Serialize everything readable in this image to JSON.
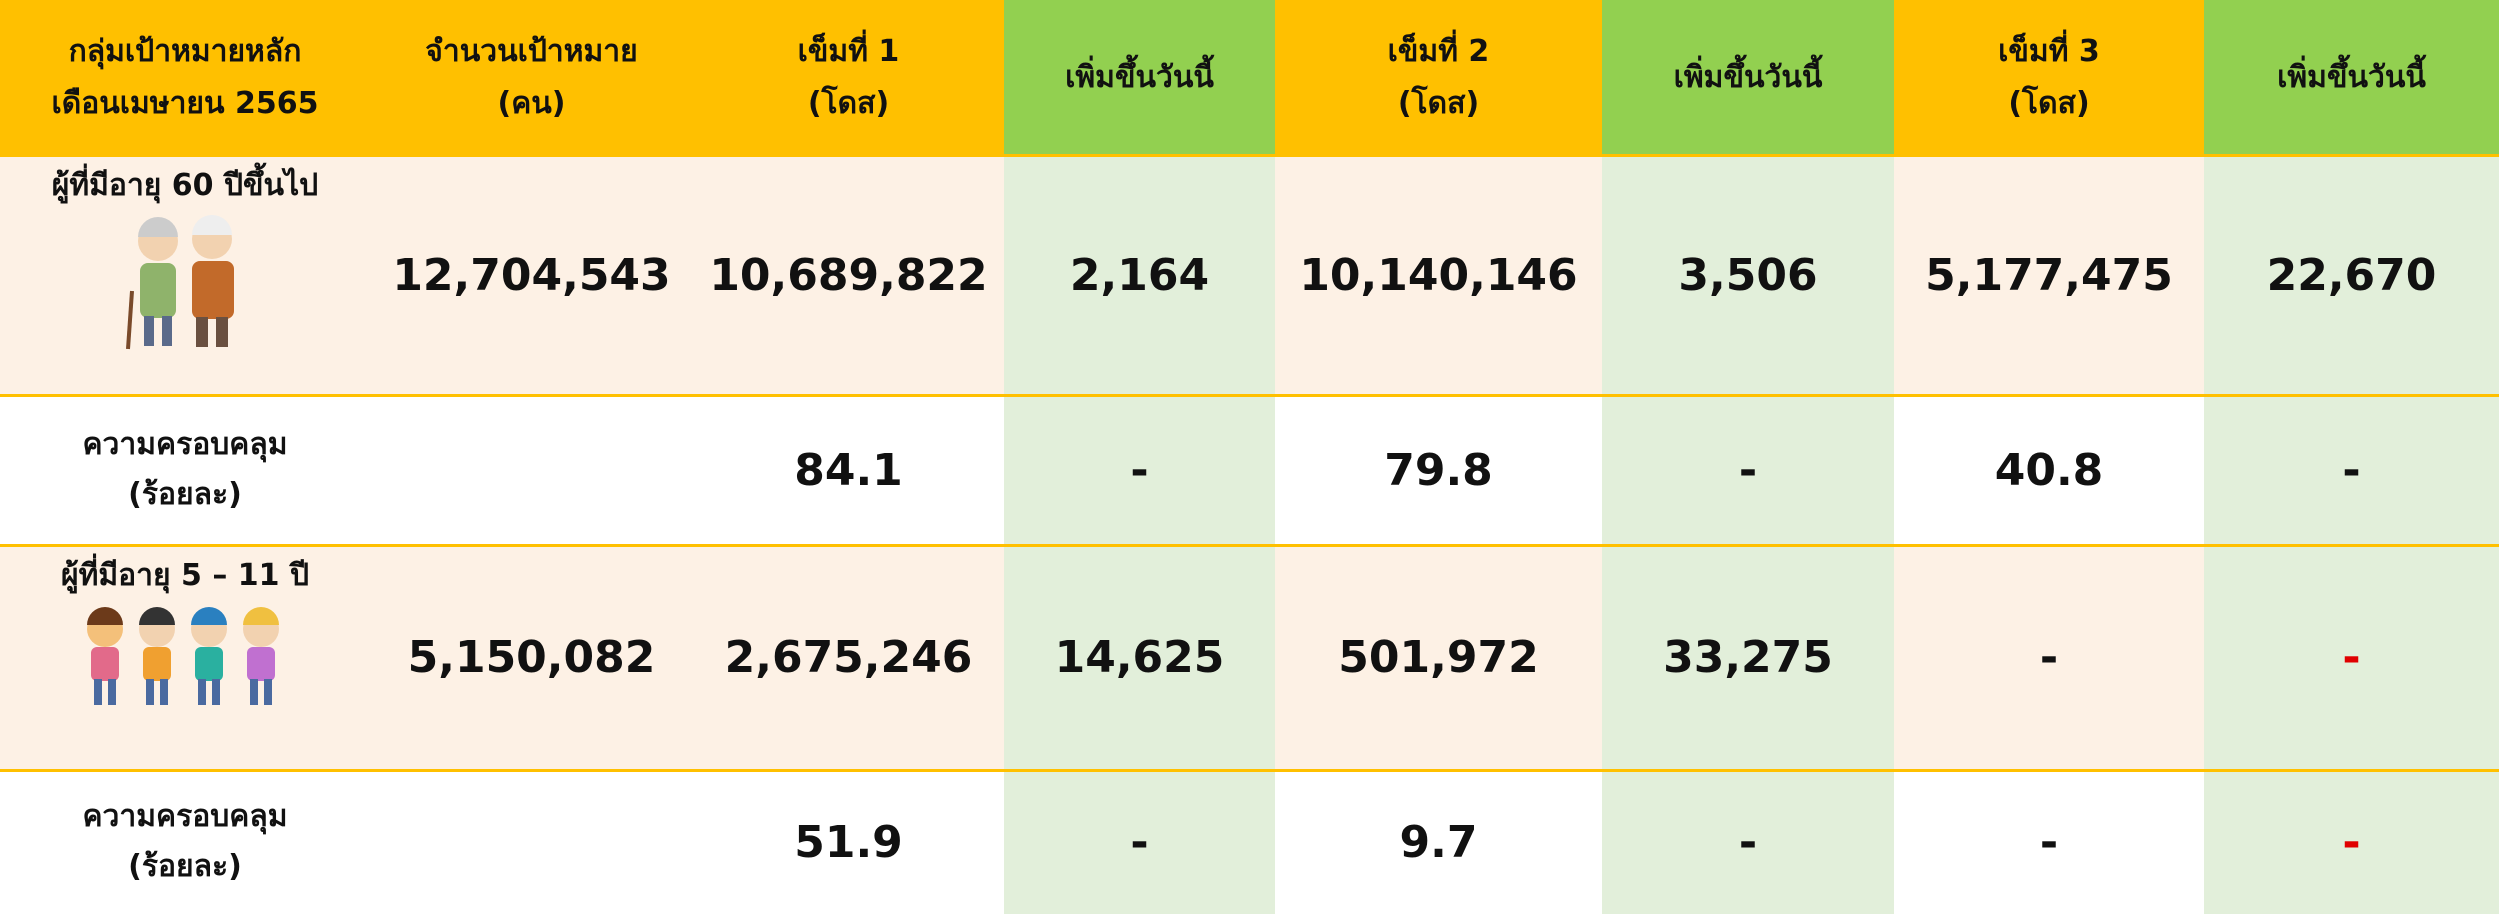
{
  "table": {
    "header": [
      [
        "กลุ่มเป้าหมายหลัก",
        "เดือนเมษายน 2565"
      ],
      [
        "จำนวนเป้าหมาย",
        "(คน)"
      ],
      [
        "เข็มที่ 1",
        "(โดส)"
      ],
      [
        "เพิ่มขึ้นวันนี้"
      ],
      [
        "เข็มที่ 2",
        "(โดส)"
      ],
      [
        "เพิ่มขึ้นวันนี้"
      ],
      [
        "เข็มที่ 3",
        "(โดส)"
      ],
      [
        "เพิ่มขึ้นวันนี้"
      ]
    ],
    "rows": [
      {
        "label": [
          "ผู้ที่มีอายุ 60 ปีขึ้นไป"
        ],
        "cells": [
          "12,704,543",
          "10,689,822",
          "2,164",
          "10,140,146",
          "3,506",
          "5,177,475",
          "22,670"
        ]
      },
      {
        "label": [
          "ความครอบคลุม",
          "(ร้อยละ)"
        ],
        "cells": [
          "",
          "84.1",
          "-",
          "79.8",
          "-",
          "40.8",
          "-"
        ]
      },
      {
        "label": [
          "ผู้ที่มีอายุ 5 – 11 ปี"
        ],
        "cells": [
          "5,150,082",
          "2,675,246",
          "14,625",
          "501,972",
          "33,275",
          "-",
          "-"
        ]
      },
      {
        "label": [
          "ความครอบคลุม",
          "(ร้อยละ)"
        ],
        "cells": [
          "",
          "51.9",
          "-",
          "9.7",
          "-",
          "-",
          "-"
        ]
      }
    ]
  }
}
